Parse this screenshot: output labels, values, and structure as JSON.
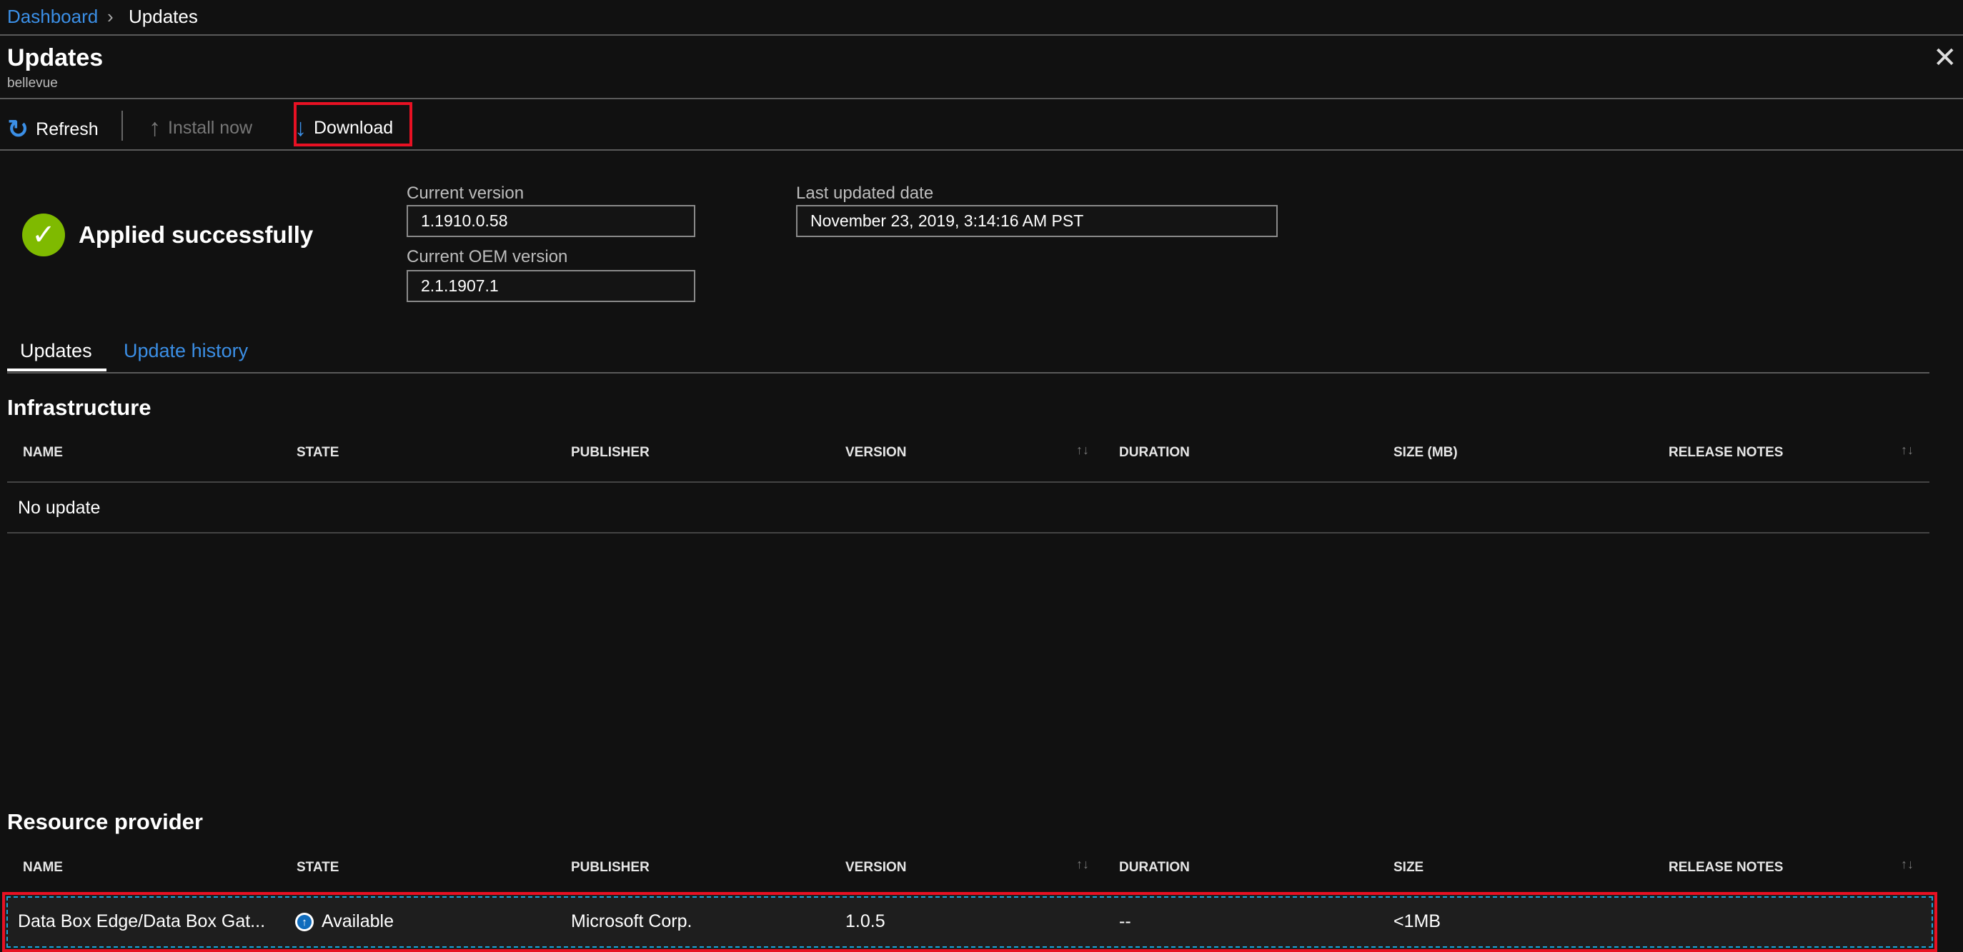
{
  "breadcrumb": {
    "items": [
      "Dashboard",
      "Updates"
    ]
  },
  "header": {
    "title": "Updates",
    "subtitle": "bellevue"
  },
  "toolbar": {
    "refresh": "Refresh",
    "install_now": "Install now",
    "download": "Download"
  },
  "status": {
    "text": "Applied successfully",
    "color": "#7fba00"
  },
  "fields": {
    "current_version_label": "Current version",
    "current_version": "1.1910.0.58",
    "current_oem_label": "Current OEM version",
    "current_oem": "2.1.1907.1",
    "last_updated_label": "Last updated date",
    "last_updated": "November 23, 2019, 3:14:16 AM PST"
  },
  "tabs": [
    {
      "label": "Updates",
      "active": true
    },
    {
      "label": "Update history",
      "active": false
    }
  ],
  "infrastructure": {
    "title": "Infrastructure",
    "columns": [
      "NAME",
      "STATE",
      "PUBLISHER",
      "VERSION",
      "DURATION",
      "SIZE (MB)",
      "RELEASE NOTES"
    ],
    "empty": "No update"
  },
  "resource_provider": {
    "title": "Resource provider",
    "columns": [
      "NAME",
      "STATE",
      "PUBLISHER",
      "VERSION",
      "DURATION",
      "SIZE",
      "RELEASE NOTES"
    ],
    "rows": [
      {
        "name": "Data Box Edge/Data Box Gat...",
        "state": "Available",
        "publisher": "Microsoft Corp.",
        "version": "1.0.5",
        "duration": "--",
        "size": "<1MB"
      }
    ]
  },
  "colors": {
    "accent": "#3b8fe6",
    "highlight": "#e81123"
  }
}
